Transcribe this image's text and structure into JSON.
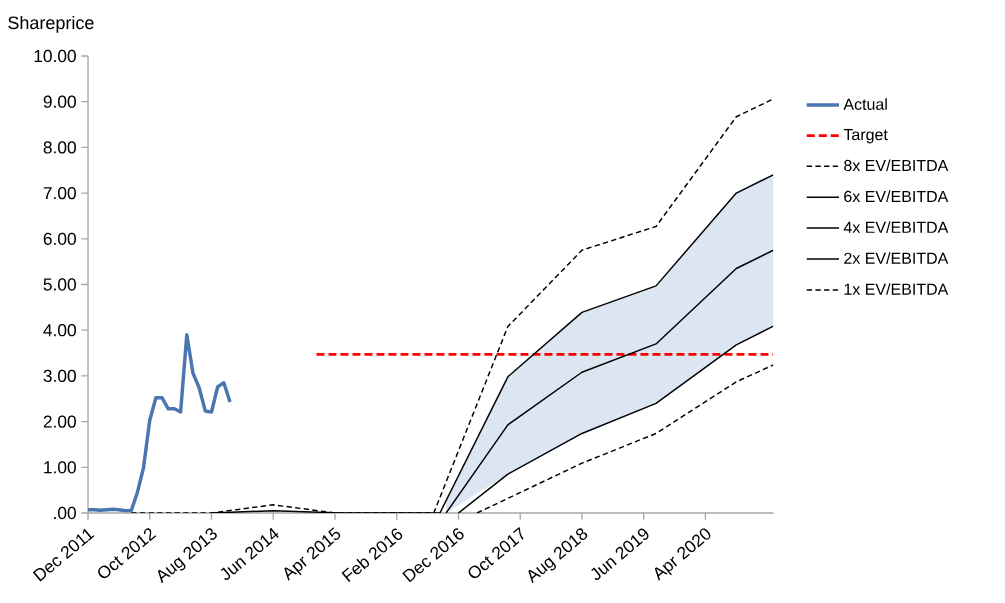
{
  "chart_data": {
    "type": "line",
    "ylabel": "Shareprice",
    "xlim": [
      "2011-12",
      "2021-03"
    ],
    "ylim": [
      0,
      10
    ],
    "xticks": [
      {
        "value": "2011-12",
        "label": "Dec 2011"
      },
      {
        "value": "2012-10",
        "label": "Oct 2012"
      },
      {
        "value": "2013-08",
        "label": "Aug 2013"
      },
      {
        "value": "2014-06",
        "label": "Jun 2014"
      },
      {
        "value": "2015-04",
        "label": "Apr 2015"
      },
      {
        "value": "2016-02",
        "label": "Feb 2016"
      },
      {
        "value": "2016-12",
        "label": "Dec 2016"
      },
      {
        "value": "2017-10",
        "label": "Oct 2017"
      },
      {
        "value": "2018-08",
        "label": "Aug 2018"
      },
      {
        "value": "2019-06",
        "label": "Jun 2019"
      },
      {
        "value": "2020-04",
        "label": "Apr 2020"
      }
    ],
    "yticks": [
      {
        "value": 0,
        "label": ".00"
      },
      {
        "value": 1,
        "label": "1.00"
      },
      {
        "value": 2,
        "label": "2.00"
      },
      {
        "value": 3,
        "label": "3.00"
      },
      {
        "value": 4,
        "label": "4.00"
      },
      {
        "value": 5,
        "label": "5.00"
      },
      {
        "value": 6,
        "label": "6.00"
      },
      {
        "value": 7,
        "label": "7.00"
      },
      {
        "value": 8,
        "label": "8.00"
      },
      {
        "value": 9,
        "label": "9.00"
      },
      {
        "value": 10,
        "label": "10.00"
      }
    ],
    "legend": "right",
    "grid": false,
    "marker": "none",
    "series": [
      {
        "name": "Actual",
        "color": "#4a76b0",
        "line_style": "solid",
        "x": [
          "2011-12",
          "2012-01",
          "2012-02",
          "2012-03",
          "2012-04",
          "2012-05",
          "2012-06",
          "2012-07",
          "2012-08",
          "2012-09",
          "2012-10",
          "2012-11",
          "2012-12",
          "2013-01",
          "2013-02",
          "2013-03",
          "2013-04",
          "2013-05",
          "2013-06",
          "2013-07",
          "2013-08",
          "2013-09",
          "2013-10",
          "2013-11"
        ],
        "values": [
          0.07,
          0.07,
          0.06,
          0.07,
          0.08,
          0.07,
          0.05,
          0.05,
          0.45,
          1.0,
          2.03,
          2.52,
          2.52,
          2.28,
          2.28,
          2.21,
          3.9,
          3.06,
          2.74,
          2.23,
          2.21,
          2.76,
          2.85,
          2.43
        ]
      },
      {
        "name": "Target",
        "color": "#ff0000",
        "line_style": "dashed",
        "x": [
          "2015-01",
          "2021-03"
        ],
        "values": [
          3.47,
          3.47
        ]
      },
      {
        "name": "8x EV/EBITDA",
        "color": "#000000",
        "line_style": "dashed",
        "x": [
          "2012-07",
          "2013-08",
          "2014-06",
          "2015-04",
          "2016-08",
          "2017-08",
          "2018-08",
          "2019-08",
          "2020-09",
          "2021-03"
        ],
        "values": [
          0,
          0,
          0.18,
          0,
          0,
          4.08,
          5.75,
          6.27,
          8.67,
          9.06
        ]
      },
      {
        "name": "6x EV/EBITDA",
        "color": "#000000",
        "line_style": "solid",
        "x": [
          "2013-08",
          "2014-06",
          "2015-05",
          "2016-09",
          "2017-08",
          "2018-08",
          "2019-08",
          "2020-09",
          "2021-03"
        ],
        "values": [
          0,
          0.05,
          0,
          0,
          2.98,
          4.39,
          4.97,
          7.0,
          7.4
        ]
      },
      {
        "name": "4x EV/EBITDA",
        "color": "#000000",
        "line_style": "solid",
        "x": [
          "2016-10",
          "2017-08",
          "2018-08",
          "2019-08",
          "2020-09",
          "2021-03"
        ],
        "values": [
          0,
          1.93,
          3.08,
          3.7,
          5.35,
          5.75
        ],
        "lower": [
          0,
          0.85,
          1.74,
          2.4,
          3.68,
          4.09
        ],
        "upper": [
          0.22,
          2.98,
          4.39,
          4.97,
          7.0,
          7.4
        ]
      },
      {
        "name": "2x EV/EBITDA",
        "color": "#000000",
        "line_style": "solid",
        "x": [
          "2016-12",
          "2017-08",
          "2018-08",
          "2019-08",
          "2020-09",
          "2021-03"
        ],
        "values": [
          0,
          0.85,
          1.74,
          2.4,
          3.68,
          4.09
        ]
      },
      {
        "name": "1x EV/EBITDA",
        "color": "#000000",
        "line_style": "dashed",
        "x": [
          "2017-03",
          "2017-08",
          "2018-08",
          "2019-08",
          "2020-09",
          "2021-03"
        ],
        "values": [
          0,
          0.32,
          1.09,
          1.74,
          2.87,
          3.24
        ]
      }
    ]
  }
}
